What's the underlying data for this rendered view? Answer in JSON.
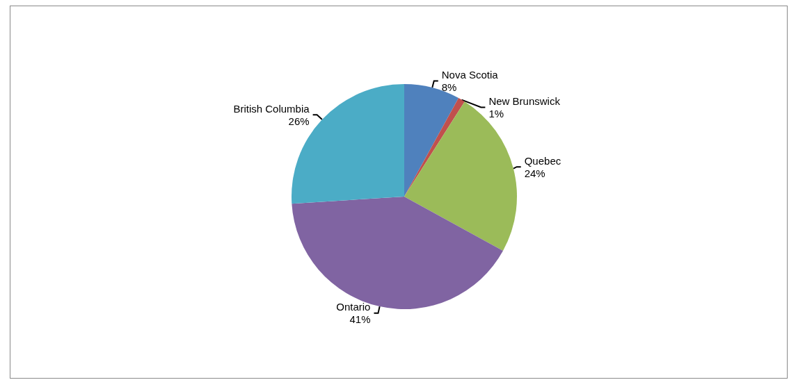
{
  "chart_data": {
    "type": "pie",
    "categories": [
      "Nova Scotia",
      "New Brunswick",
      "Quebec",
      "Ontario",
      "British Columbia"
    ],
    "values": [
      8,
      1,
      24,
      41,
      26
    ],
    "value_labels": [
      "8%",
      "1%",
      "24%",
      "41%",
      "26%"
    ],
    "colors": [
      "#4f81bd",
      "#c0504d",
      "#9bbb59",
      "#8064a2",
      "#4bacc6"
    ],
    "legend": false
  }
}
